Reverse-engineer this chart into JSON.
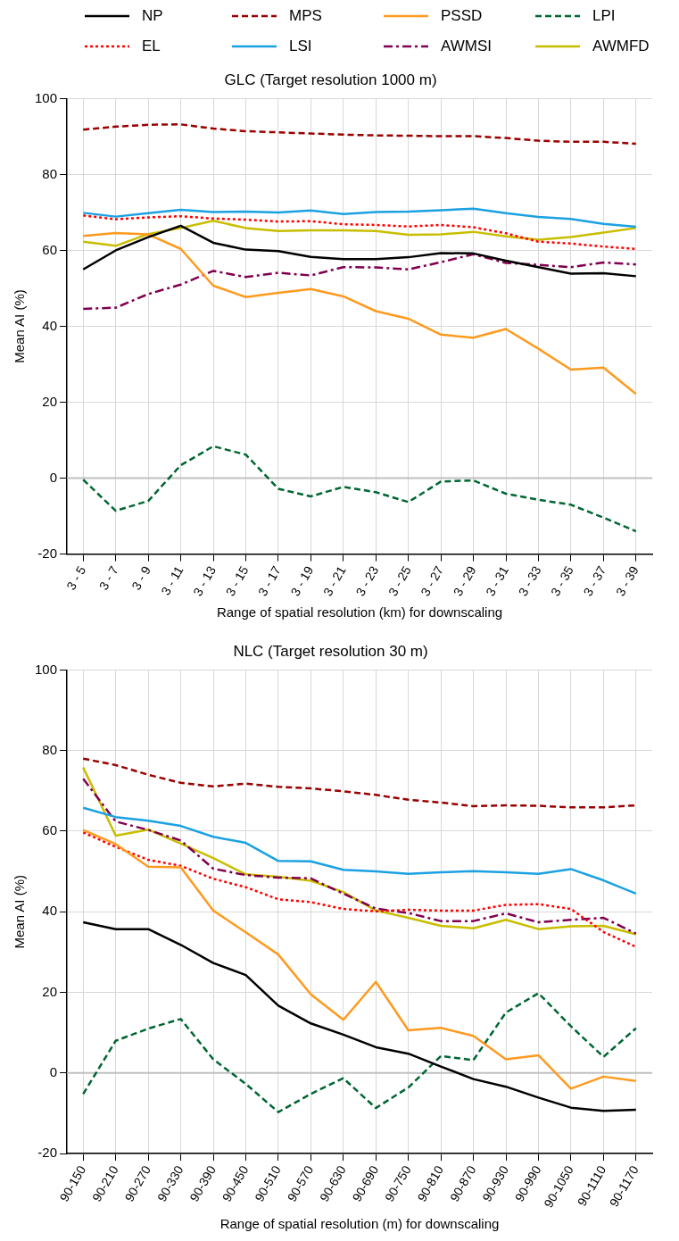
{
  "chart_data": [
    {
      "type": "line",
      "title": "GLC (Target resolution 1000 m)",
      "xlabel": "Range of spatial resolution (km) for downscaling",
      "ylabel": "Mean AI (%)",
      "categories": [
        "3 - 5",
        "3 - 7",
        "3 - 9",
        "3 - 11",
        "3 - 13",
        "3 - 15",
        "3 - 17",
        "3 - 19",
        "3 - 21",
        "3 - 23",
        "3 - 25",
        "3 - 27",
        "3 - 29",
        "3 - 31",
        "3 - 33",
        "3 - 35",
        "3 - 37",
        "3 - 39"
      ],
      "ylim": [
        -20,
        100
      ],
      "yticks": [
        -20,
        0,
        20,
        40,
        60,
        80,
        100
      ],
      "grid": true,
      "legend": "top",
      "marker": "none",
      "ref_lines": [
        {
          "axis": "y",
          "value": 0,
          "color": "#c0c0c0"
        }
      ],
      "series": [
        {
          "name": "NP",
          "color": "#000000",
          "line_style": "solid",
          "values": [
            55,
            60,
            63.5,
            66.5,
            62,
            60.2,
            59.8,
            58.3,
            57.7,
            57.7,
            58.2,
            59.3,
            59.2,
            57.3,
            55.6,
            53.9,
            54,
            53.2
          ]
        },
        {
          "name": "MPS",
          "color": "#990000",
          "line_style": "dashed",
          "values": [
            91.8,
            92.6,
            93.1,
            93.2,
            92.1,
            91.4,
            91.1,
            90.8,
            90.5,
            90.3,
            90.2,
            90.1,
            90.1,
            89.6,
            88.9,
            88.6,
            88.6,
            88.1
          ]
        },
        {
          "name": "PSSD",
          "color": "#ff9a1f",
          "line_style": "solid",
          "values": [
            63.8,
            64.6,
            64.2,
            60.4,
            50.7,
            47.7,
            48.8,
            49.8,
            47.9,
            44,
            42,
            37.8,
            37,
            39.3,
            34.1,
            28.6,
            29.1,
            22.2
          ]
        },
        {
          "name": "LPI",
          "color": "#006633",
          "line_style": "dashed",
          "values": [
            -0.4,
            -8.6,
            -6,
            3.4,
            8.4,
            6.2,
            -2.8,
            -4.8,
            -2.3,
            -3.7,
            -6.3,
            -0.9,
            -0.6,
            -4.1,
            -5.7,
            -7,
            -10.4,
            -14
          ]
        },
        {
          "name": "EL",
          "color": "#ff0000",
          "line_style": "dotted",
          "values": [
            69.2,
            68.2,
            68.7,
            69,
            68.4,
            68.1,
            67.6,
            67.7,
            66.9,
            66.7,
            66.3,
            66.7,
            66.1,
            64.5,
            62.3,
            61.8,
            61,
            60.4
          ]
        },
        {
          "name": "LSI",
          "color": "#1ba1e2",
          "line_style": "solid",
          "values": [
            69.9,
            68.9,
            69.8,
            70.7,
            70.1,
            70.2,
            70,
            70.5,
            69.6,
            70.1,
            70.2,
            70.6,
            71,
            69.8,
            68.8,
            68.3,
            67,
            66.2
          ]
        },
        {
          "name": "AWMSI",
          "color": "#800050",
          "line_style": "dashdot",
          "values": [
            44.6,
            44.9,
            48.5,
            51,
            54.6,
            53,
            54.1,
            53.4,
            55.6,
            55.5,
            55,
            56.9,
            59,
            56.7,
            56.2,
            55.6,
            56.8,
            56.3
          ]
        },
        {
          "name": "AWMFD",
          "color": "#c8be00",
          "line_style": "solid",
          "values": [
            62.3,
            61.2,
            64.3,
            65.9,
            67.8,
            65.9,
            65.1,
            65.3,
            65.3,
            65.1,
            64.1,
            64.2,
            64.9,
            63.7,
            62.8,
            63.5,
            64.7,
            65.9
          ]
        }
      ]
    },
    {
      "type": "line",
      "title": "NLC (Target resolution 30 m)",
      "xlabel": "Range of spatial resolution (m) for downscaling",
      "ylabel": "Mean AI (%)",
      "categories": [
        "90-150",
        "90-210",
        "90-270",
        "90-330",
        "90-390",
        "90-450",
        "90-510",
        "90-570",
        "90-630",
        "90-690",
        "90-750",
        "90-810",
        "90-870",
        "90-930",
        "90-990",
        "90-1050",
        "90-1110",
        "90-1170"
      ],
      "ylim": [
        -20,
        100
      ],
      "yticks": [
        -20,
        0,
        20,
        40,
        60,
        80,
        100
      ],
      "grid": true,
      "marker": "none",
      "ref_lines": [
        {
          "axis": "y",
          "value": 0,
          "color": "#c0c0c0"
        }
      ],
      "series": [
        {
          "color": "#000000",
          "line_style": "solid",
          "values": [
            37.4,
            35.7,
            35.7,
            31.8,
            27.3,
            24.3,
            16.7,
            12.3,
            9.5,
            6.4,
            4.8,
            1.6,
            -1.5,
            -3.4,
            -6.1,
            -8.6,
            -9.4,
            -9.1
          ]
        },
        {
          "color": "#990000",
          "line_style": "dashed",
          "values": [
            78,
            76.4,
            74,
            72,
            71.1,
            71.8,
            71,
            70.6,
            69.9,
            69,
            67.8,
            67.1,
            66.2,
            66.4,
            66.3,
            65.9,
            65.9,
            66.4
          ]
        },
        {
          "color": "#ff9a1f",
          "line_style": "solid",
          "values": [
            60.3,
            56.8,
            51.2,
            51,
            40.3,
            34.9,
            29.4,
            19.5,
            13.2,
            22.6,
            10.6,
            11.2,
            9.2,
            3.4,
            4.4,
            -3.9,
            -0.9,
            -2
          ]
        },
        {
          "color": "#006633",
          "line_style": "dashed",
          "values": [
            -5.2,
            8,
            11,
            13.4,
            3.4,
            -2.7,
            -9.7,
            -5.2,
            -1.3,
            -8.7,
            -3.6,
            4.2,
            3.2,
            15,
            19.8,
            11.6,
            4,
            11.1
          ]
        },
        {
          "color": "#ff0000",
          "line_style": "dotted",
          "values": [
            59.7,
            56.1,
            52.9,
            51.4,
            48.2,
            46.1,
            43.1,
            42.4,
            40.7,
            40.1,
            40.5,
            40.3,
            40.3,
            41.7,
            41.9,
            40.7,
            35,
            31.3
          ]
        },
        {
          "color": "#1ba1e2",
          "line_style": "solid",
          "values": [
            65.8,
            63.5,
            62.6,
            61.3,
            58.6,
            57.1,
            52.6,
            52.5,
            50.4,
            50,
            49.4,
            49.8,
            50.1,
            49.8,
            49.4,
            50.6,
            47.8,
            44.5
          ]
        },
        {
          "color": "#800050",
          "line_style": "dashdot",
          "values": [
            73,
            62.4,
            60.3,
            57.7,
            50.7,
            49.1,
            48.5,
            48.3,
            44.5,
            40.8,
            39.7,
            37.7,
            37.7,
            39.6,
            37.4,
            38,
            38.5,
            34.6
          ]
        },
        {
          "color": "#c8be00",
          "line_style": "solid",
          "values": [
            75.8,
            58.9,
            60.4,
            56.9,
            53.3,
            49.3,
            48.7,
            47.7,
            44.9,
            40.3,
            38.5,
            36.5,
            35.9,
            38,
            35.7,
            36.4,
            36.5,
            34.4
          ]
        }
      ]
    }
  ]
}
